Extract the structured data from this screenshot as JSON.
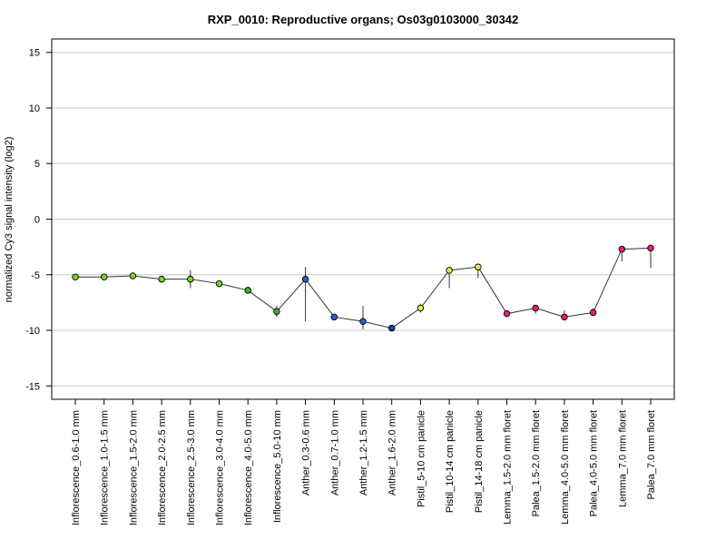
{
  "chart_data": {
    "type": "line",
    "title": "RXP_0010: Reproductive organs; Os03g0103000_30342",
    "xlabel": "",
    "ylabel": "normalized Cy3 signal intensity (log2)",
    "ylim": [
      -16.2,
      16.2
    ],
    "yticks": [
      15,
      10,
      5,
      0,
      -5,
      -10,
      -15
    ],
    "grid": true,
    "line_color": "#333333",
    "categories": [
      "Inflorescence_0.6-1.0 mm",
      "Inflorescence_1.0-1.5 mm",
      "Inflorescence_1.5-2.0 mm",
      "Inflorescence_2.0-2.5 mm",
      "Inflorescence_2.5-3.0 mm",
      "Inflorescence_3.0-4.0 mm",
      "Inflorescence_4.0-5.0 mm",
      "Inflorescence_5.0-10 mm",
      "Anther_0.3-0.6 mm",
      "Anther_0.7-1.0 mm",
      "Anther_1.2-1.5 mm",
      "Anther_1.6-2.0 mm",
      "Pistil_5-10 cm panicle",
      "Pistil_10-14 cm panicle",
      "Pistil_14-18 cm panicle",
      "Lemma_1.5-2.0 mm floret",
      "Palea_1.5-2.0 mm floret",
      "Lemma_4.0-5.0 mm floret",
      "Palea_4.0-5.0 mm floret",
      "Lemma_7.0 mm floret",
      "Palea_7.0 mm floret"
    ],
    "series": [
      {
        "values": [
          -5.2,
          -5.2,
          -5.1,
          -5.4,
          -5.4,
          -5.8,
          -6.4,
          -8.3,
          -5.4,
          -8.8,
          -9.2,
          -9.8,
          -8.0,
          -4.6,
          -4.3,
          -8.5,
          -8.0,
          -8.8,
          -8.4,
          -2.7,
          -2.6
        ],
        "error_low": [
          -5.2,
          -5.2,
          -5.1,
          -5.4,
          -6.2,
          -5.8,
          -6.6,
          -8.8,
          -9.2,
          -8.8,
          -9.9,
          -9.8,
          -8.4,
          -6.2,
          -5.3,
          -8.6,
          -8.5,
          -8.9,
          -8.6,
          -3.8,
          -4.4
        ],
        "error_high": [
          -5.2,
          -5.2,
          -5.1,
          -5.4,
          -4.6,
          -5.8,
          -6.1,
          -7.8,
          -4.3,
          -8.8,
          -7.8,
          -9.8,
          -7.6,
          -4.4,
          -4.0,
          -8.4,
          -7.9,
          -8.2,
          -8.0,
          -2.6,
          -2.5
        ],
        "colors": [
          "#7ED321",
          "#7ED321",
          "#7ED321",
          "#7ED321",
          "#7ED321",
          "#7ED321",
          "#41B030",
          "#41B030",
          "#2E5FD0",
          "#2E5FD0",
          "#2E5FD0",
          "#233A9C",
          "#F2E24A",
          "#F2E24A",
          "#F2E24A",
          "#E0207A",
          "#E0207A",
          "#E0207A",
          "#E0207A",
          "#E0207A",
          "#E0207A"
        ]
      }
    ]
  }
}
